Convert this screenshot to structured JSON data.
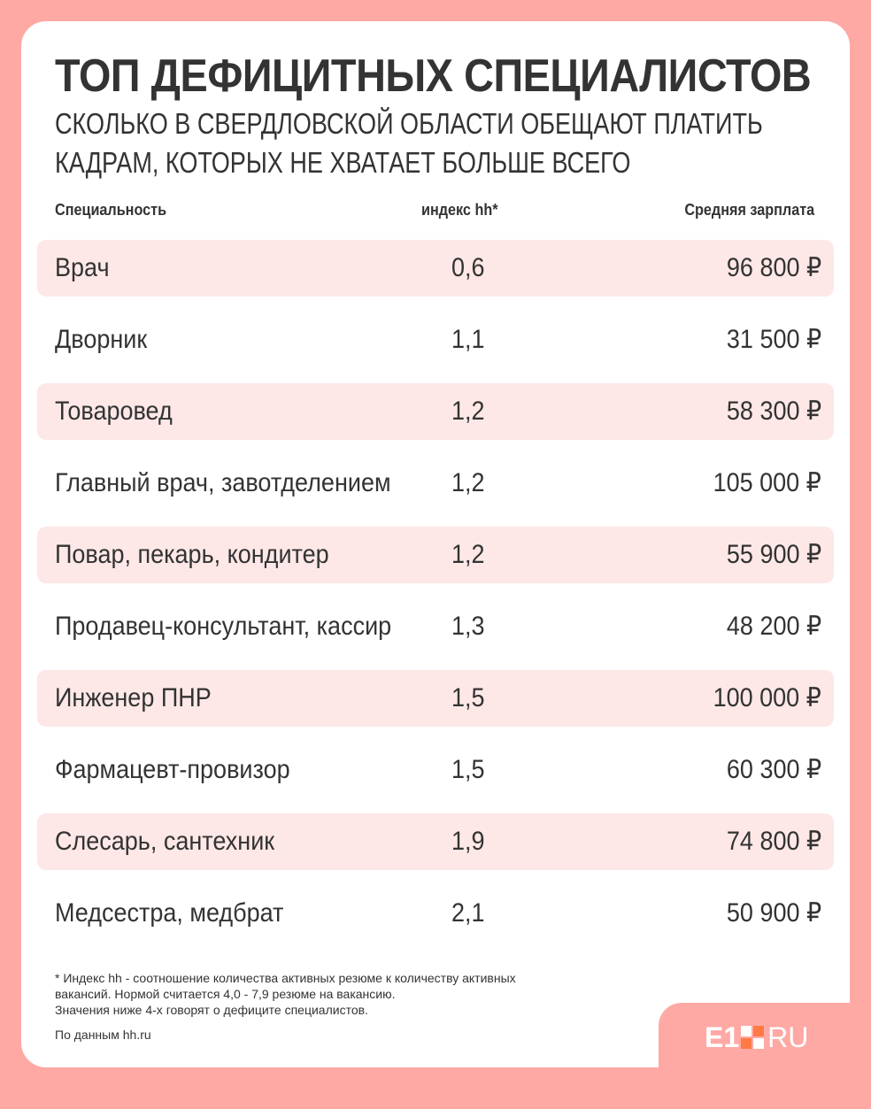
{
  "title": "ТОП ДЕФИЦИТНЫХ СПЕЦИАЛИСТОВ",
  "subtitle_line1": "СКОЛЬКО В СВЕРДЛОВСКОЙ ОБЛАСТИ ОБЕЩАЮТ ПЛАТИТЬ",
  "subtitle_line2": "КАДРАМ, КОТОРЫХ НЕ ХВАТАЕТ БОЛЬШЕ ВСЕГО",
  "table": {
    "headers": {
      "spec": "Специальность",
      "index": "индекс hh*",
      "salary": "Средняя зарплата"
    },
    "rows": [
      {
        "spec": "Врач",
        "index": "0,6",
        "salary": "96 800 ₽"
      },
      {
        "spec": "Дворник",
        "index": "1,1",
        "salary": "31 500 ₽"
      },
      {
        "spec": "Товаровед",
        "index": "1,2",
        "salary": "58 300 ₽"
      },
      {
        "spec": "Главный врач, завотделением",
        "index": "1,2",
        "salary": "105 000 ₽"
      },
      {
        "spec": "Повар, пекарь, кондитер",
        "index": "1,2",
        "salary": "55 900 ₽"
      },
      {
        "spec": "Продавец-консультант, кассир",
        "index": "1,3",
        "salary": "48 200 ₽"
      },
      {
        "spec": "Инженер ПНР",
        "index": "1,5",
        "salary": "100 000 ₽"
      },
      {
        "spec": "Фармацевт-провизор",
        "index": "1,5",
        "salary": "60 300 ₽"
      },
      {
        "spec": "Слесарь, сантехник",
        "index": "1,9",
        "salary": "74 800 ₽"
      },
      {
        "spec": "Медсестра, медбрат",
        "index": "2,1",
        "salary": "50 900 ₽"
      }
    ]
  },
  "footnote_line1": "* Индекс hh - соотношение количества активных резюме к количеству активных",
  "footnote_line2": "вакансий. Нормой считается 4,0 - 7,9 резюме на вакансию.",
  "footnote_line3": "Значения ниже 4-х говорят о дефиците специалистов.",
  "source": "По данным hh.ru",
  "logo": {
    "left": "E1",
    "right": "RU"
  },
  "colors": {
    "background": "#ffa9a4",
    "row_shade": "#fde8e7",
    "text": "#333333",
    "logo_accent": "#ff7a45"
  }
}
